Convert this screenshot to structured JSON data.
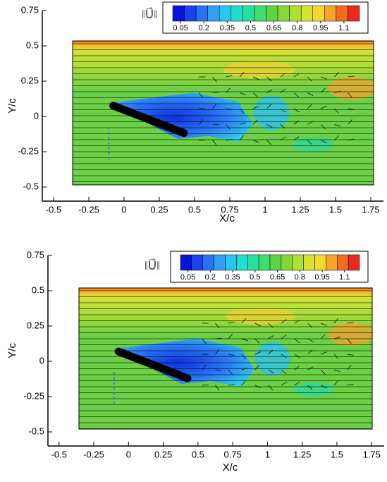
{
  "chart_data": [
    {
      "type": "contour",
      "xlabel": "X/c",
      "ylabel": "Y/c",
      "xlim": [
        -0.58,
        1.84
      ],
      "ylim": [
        -0.6,
        0.75
      ],
      "xticks": [
        -0.5,
        -0.25,
        0,
        0.25,
        0.5,
        0.75,
        1,
        1.25,
        1.5,
        1.75
      ],
      "yticks": [
        -0.5,
        -0.25,
        0,
        0.25,
        0.5,
        0.75
      ],
      "colorbar": {
        "label": "‖U⃗‖",
        "lim": [
          0,
          1.2
        ],
        "ticks": [
          0.05,
          0.2,
          0.35,
          0.5,
          0.65,
          0.8,
          0.95,
          1.1
        ],
        "colors": [
          "#0a14d8",
          "#1844f0",
          "#2a72f4",
          "#30a0f4",
          "#28c8ee",
          "#22dcd0",
          "#28e0a0",
          "#40dc70",
          "#5cd444",
          "#86d83a",
          "#b0e034",
          "#d8e434",
          "#f4d830",
          "#f8a428",
          "#f46c22",
          "#e82a1c"
        ]
      }
    },
    {
      "type": "contour",
      "xlabel": "X/c",
      "ylabel": "Y/c",
      "xlim": [
        -0.58,
        1.84
      ],
      "ylim": [
        -0.6,
        0.75
      ],
      "xticks": [
        -0.5,
        -0.25,
        0,
        0.25,
        0.5,
        0.75,
        1,
        1.25,
        1.5,
        1.75
      ],
      "yticks": [
        -0.5,
        -0.25,
        0,
        0.25,
        0.5,
        0.75
      ],
      "colorbar": {
        "label": "‖U⃗‖",
        "lim": [
          0,
          1.2
        ],
        "ticks": [
          0.05,
          0.2,
          0.35,
          0.5,
          0.65,
          0.8,
          0.95,
          1.1
        ],
        "colors": [
          "#0a14d8",
          "#1844f0",
          "#2a72f4",
          "#30a0f4",
          "#28c8ee",
          "#22dcd0",
          "#28e0a0",
          "#40dc70",
          "#5cd444",
          "#86d83a",
          "#b0e034",
          "#d8e434",
          "#f4d830",
          "#f8a428",
          "#f46c22",
          "#e82a1c"
        ]
      }
    }
  ]
}
